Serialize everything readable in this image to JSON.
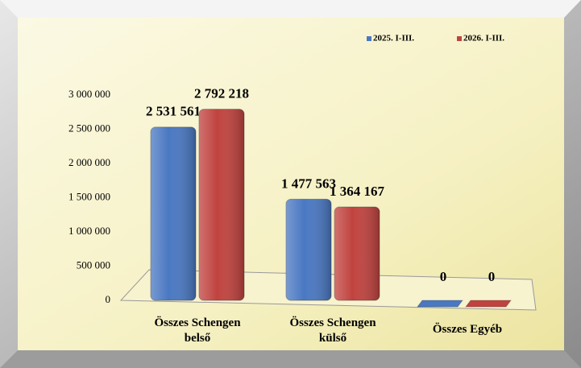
{
  "chart_data": {
    "type": "bar",
    "categories": [
      "Összes Schengen belső",
      "Összes Schengen külső",
      "Összes Egyéb"
    ],
    "series": [
      {
        "name": "2025. I-III.",
        "color": "#4a78c2",
        "values": [
          2531561,
          1477563,
          0
        ],
        "value_labels": [
          "2 531 561",
          "1 477 563",
          "0"
        ]
      },
      {
        "name": "2026. I-III.",
        "color": "#c0433f",
        "values": [
          2792218,
          1364167,
          0
        ],
        "value_labels": [
          "2 792 218",
          "1 364 167",
          "0"
        ]
      }
    ],
    "ylim": [
      0,
      3000000
    ],
    "yticks": [
      0,
      {
        "value": 500000,
        "label": "500 000"
      },
      {
        "value": 1000000,
        "label": "1 000 000"
      },
      {
        "value": 1500000,
        "label": "1 500 000"
      },
      {
        "value": 2000000,
        "label": "2 000 000"
      },
      {
        "value": 2500000,
        "label": "2 500 000"
      },
      {
        "value": 3000000,
        "label": "3 000 000"
      }
    ],
    "legend": "top-right"
  }
}
